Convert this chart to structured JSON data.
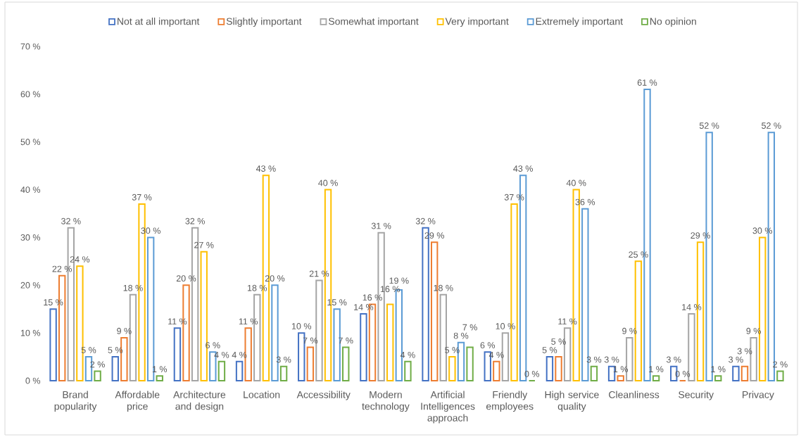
{
  "chart_data": {
    "type": "bar",
    "categories": [
      "Brand popularity",
      "Affordable price",
      "Architecture and design",
      "Location",
      "Accessibility",
      "Modern technology",
      "Artificial Intelligences approach",
      "Friendly employees",
      "High service quality",
      "Cleanliness",
      "Security",
      "Privacy"
    ],
    "series": [
      {
        "name": "Not at all important",
        "color": "#4472c4",
        "values": [
          15,
          5,
          11,
          4,
          10,
          14,
          32,
          6,
          5,
          3,
          3,
          3
        ],
        "value_labels": [
          "15 %",
          "5 %",
          "11 %",
          "4 %",
          "10 %",
          "14 %",
          "32 %",
          "6 %",
          "5 %",
          "3 %",
          "3 %",
          "3 %"
        ]
      },
      {
        "name": "Slightly important",
        "color": "#ed7d31",
        "values": [
          22,
          9,
          20,
          11,
          7,
          16,
          29,
          4,
          5,
          1,
          0,
          3
        ],
        "value_labels": [
          "22 %",
          "9 %",
          "20 %",
          "11 %",
          "7 %",
          "16 %",
          "29 %",
          "4 %",
          "5 %",
          "1 %",
          "0 %",
          "3 %"
        ]
      },
      {
        "name": "Somewhat important",
        "color": "#a5a5a5",
        "values": [
          32,
          18,
          32,
          18,
          21,
          31,
          18,
          10,
          11,
          9,
          14,
          9
        ],
        "value_labels": [
          "32 %",
          "18 %",
          "32 %",
          "18 %",
          "21 %",
          "31 %",
          "18 %",
          "10 %",
          "11 %",
          "9 %",
          "14 %",
          "9 %"
        ]
      },
      {
        "name": "Very important",
        "color": "#ffc000",
        "values": [
          24,
          37,
          27,
          43,
          40,
          16,
          5,
          37,
          40,
          25,
          29,
          30
        ],
        "value_labels": [
          "24 %",
          "37 %",
          "27 %",
          "43 %",
          "40 %",
          "16 %",
          "5 %",
          "37 %",
          "40 %",
          "25 %",
          "29 %",
          "30 %"
        ]
      },
      {
        "name": "Extremely important",
        "color": "#5b9bd5",
        "values": [
          5,
          30,
          6,
          20,
          15,
          19,
          8,
          43,
          36,
          61,
          52,
          52
        ],
        "value_labels": [
          "5 %",
          "30 %",
          "6 %",
          "20 %",
          "15 %",
          "19 %",
          "8 %",
          "43 %",
          "36 %",
          "61 %",
          "52 %",
          "52 %"
        ]
      },
      {
        "name": "No opinion",
        "color": "#70ad47",
        "values": [
          2,
          1,
          4,
          3,
          7,
          4,
          7,
          0,
          3,
          1,
          1,
          2
        ],
        "value_labels": [
          "2 %",
          "1 %",
          "4 %",
          "3 %",
          "7 %",
          "4 %",
          "7 %",
          "0 %",
          "3 %",
          "1 %",
          "1 %",
          "2 %"
        ]
      }
    ],
    "ylim": [
      0,
      70
    ],
    "yticks": [
      {
        "value": 0,
        "label": "0 %"
      },
      {
        "value": 10,
        "label": "10 %"
      },
      {
        "value": 20,
        "label": "20 %"
      },
      {
        "value": 30,
        "label": "30 %"
      },
      {
        "value": 40,
        "label": "40 %"
      },
      {
        "value": 50,
        "label": "50 %"
      },
      {
        "value": 60,
        "label": "60 %"
      },
      {
        "value": 70,
        "label": "70 %"
      }
    ],
    "legend": "top"
  }
}
